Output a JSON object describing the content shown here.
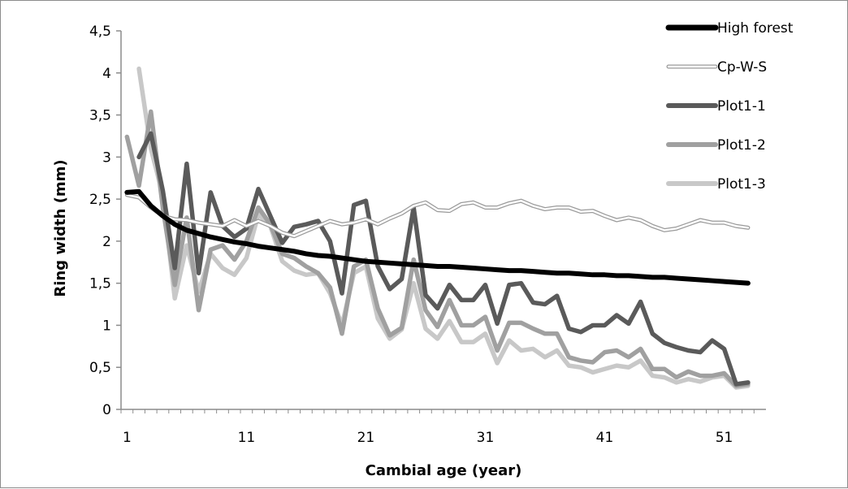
{
  "chart_data": {
    "type": "line",
    "title": "",
    "xlabel": "Cambial age (year)",
    "ylabel": "Ring width (mm)",
    "xlim": [
      0.5,
      54.5
    ],
    "ylim": [
      0,
      4.5
    ],
    "x_ticks": [
      1,
      11,
      21,
      31,
      41,
      51
    ],
    "x_tick_labels": [
      "1",
      "11",
      "21",
      "31",
      "41",
      "51"
    ],
    "y_ticks": [
      0,
      0.5,
      1,
      1.5,
      2,
      2.5,
      3,
      3.5,
      4,
      4.5
    ],
    "y_tick_labels": [
      "0",
      "0,5",
      "1",
      "1,5",
      "2",
      "2,5",
      "3",
      "3,5",
      "4",
      "4,5"
    ],
    "legend_position": "top-right",
    "grid": false,
    "x": [
      1,
      2,
      3,
      4,
      5,
      6,
      7,
      8,
      9,
      10,
      11,
      12,
      13,
      14,
      15,
      16,
      17,
      18,
      19,
      20,
      21,
      22,
      23,
      24,
      25,
      26,
      27,
      28,
      29,
      30,
      31,
      32,
      33,
      34,
      35,
      36,
      37,
      38,
      39,
      40,
      41,
      42,
      43,
      44,
      45,
      46,
      47,
      48,
      49,
      50,
      51,
      52,
      53
    ],
    "series": [
      {
        "name": "High forest",
        "color": "#000000",
        "style": "solid-thick",
        "values": [
          2.58,
          2.59,
          2.42,
          2.3,
          2.2,
          2.13,
          2.09,
          2.05,
          2.02,
          1.99,
          1.97,
          1.94,
          1.92,
          1.9,
          1.88,
          1.85,
          1.83,
          1.82,
          1.8,
          1.78,
          1.76,
          1.75,
          1.74,
          1.73,
          1.72,
          1.71,
          1.7,
          1.7,
          1.69,
          1.68,
          1.67,
          1.66,
          1.65,
          1.65,
          1.64,
          1.63,
          1.62,
          1.62,
          1.61,
          1.6,
          1.6,
          1.59,
          1.59,
          1.58,
          1.57,
          1.57,
          1.56,
          1.55,
          1.54,
          1.53,
          1.52,
          1.51,
          1.5
        ]
      },
      {
        "name": "Cp-W-S",
        "color": "#ffffff",
        "style": "outlined",
        "values": [
          2.55,
          2.52,
          2.4,
          2.3,
          2.26,
          2.25,
          2.22,
          2.2,
          2.18,
          2.25,
          2.18,
          2.24,
          2.18,
          2.1,
          2.06,
          2.12,
          2.18,
          2.24,
          2.2,
          2.22,
          2.26,
          2.2,
          2.27,
          2.33,
          2.42,
          2.46,
          2.37,
          2.36,
          2.44,
          2.46,
          2.4,
          2.4,
          2.45,
          2.48,
          2.42,
          2.38,
          2.4,
          2.4,
          2.35,
          2.36,
          2.3,
          2.25,
          2.28,
          2.25,
          2.18,
          2.13,
          2.15,
          2.2,
          2.25,
          2.22,
          2.22,
          2.18,
          2.16
        ]
      },
      {
        "name": "Plot1-1",
        "color": "#5a5a5a",
        "style": "solid-thick",
        "values": [
          null,
          3.0,
          3.28,
          2.6,
          1.68,
          2.92,
          1.62,
          2.58,
          2.18,
          2.05,
          2.15,
          2.62,
          2.3,
          1.98,
          2.17,
          2.2,
          2.24,
          2.0,
          1.38,
          2.43,
          2.48,
          1.7,
          1.43,
          1.55,
          2.4,
          1.36,
          1.2,
          1.48,
          1.3,
          1.3,
          1.48,
          1.02,
          1.48,
          1.5,
          1.27,
          1.25,
          1.35,
          0.96,
          0.92,
          1.0,
          1.0,
          1.12,
          1.02,
          1.28,
          0.9,
          0.79,
          0.74,
          0.7,
          0.68,
          0.82,
          0.72,
          0.3,
          0.32
        ]
      },
      {
        "name": "Plot1-2",
        "color": "#a0a0a0",
        "style": "solid-thick",
        "values": [
          3.24,
          2.66,
          3.54,
          2.4,
          1.48,
          2.28,
          1.18,
          1.9,
          1.95,
          1.78,
          2.0,
          2.4,
          2.2,
          1.85,
          1.8,
          1.7,
          1.62,
          1.45,
          0.9,
          1.7,
          1.78,
          1.2,
          0.88,
          0.97,
          1.78,
          1.18,
          0.98,
          1.3,
          1.0,
          1.0,
          1.1,
          0.7,
          1.03,
          1.03,
          0.96,
          0.9,
          0.9,
          0.62,
          0.58,
          0.56,
          0.68,
          0.7,
          0.62,
          0.72,
          0.48,
          0.48,
          0.38,
          0.45,
          0.4,
          0.4,
          0.43,
          0.28,
          0.3
        ]
      },
      {
        "name": "Plot1-3",
        "color": "#c8c8c8",
        "style": "solid-thick",
        "values": [
          null,
          4.05,
          3.1,
          2.55,
          1.32,
          1.95,
          1.4,
          1.85,
          1.68,
          1.6,
          1.8,
          2.32,
          2.18,
          1.76,
          1.65,
          1.6,
          1.62,
          1.38,
          1.0,
          1.62,
          1.7,
          1.08,
          0.84,
          0.95,
          1.5,
          0.96,
          0.84,
          1.05,
          0.8,
          0.8,
          0.9,
          0.55,
          0.82,
          0.7,
          0.72,
          0.62,
          0.7,
          0.52,
          0.5,
          0.44,
          0.48,
          0.52,
          0.5,
          0.58,
          0.4,
          0.38,
          0.32,
          0.36,
          0.33,
          0.38,
          0.4,
          0.26,
          0.28
        ]
      }
    ]
  }
}
